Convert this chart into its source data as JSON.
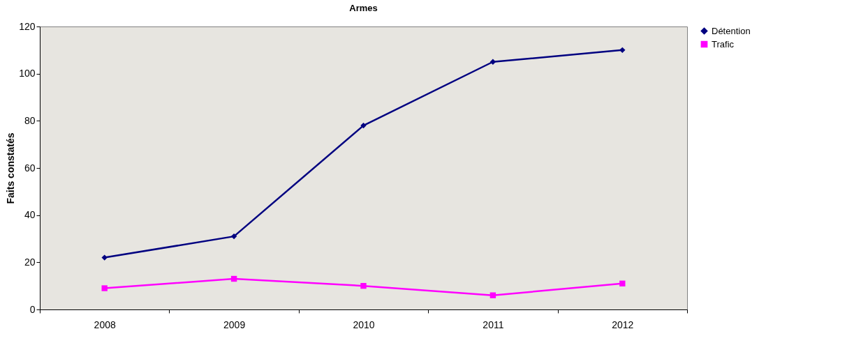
{
  "chart_data": {
    "type": "line",
    "title": "Armes",
    "ylabel": "Faits constatés",
    "categories": [
      "2008",
      "2009",
      "2010",
      "2011",
      "2012"
    ],
    "ylim": [
      0,
      120
    ],
    "yticks": [
      0,
      20,
      40,
      60,
      80,
      100,
      120
    ],
    "grid": false,
    "legend": "right",
    "series": [
      {
        "name": "Détention",
        "color": "#000080",
        "marker": "diamond",
        "values": [
          22,
          31,
          78,
          105,
          110
        ]
      },
      {
        "name": "Trafic",
        "color": "#ff00ff",
        "marker": "square",
        "values": [
          9,
          13,
          10,
          6,
          11
        ]
      }
    ]
  }
}
